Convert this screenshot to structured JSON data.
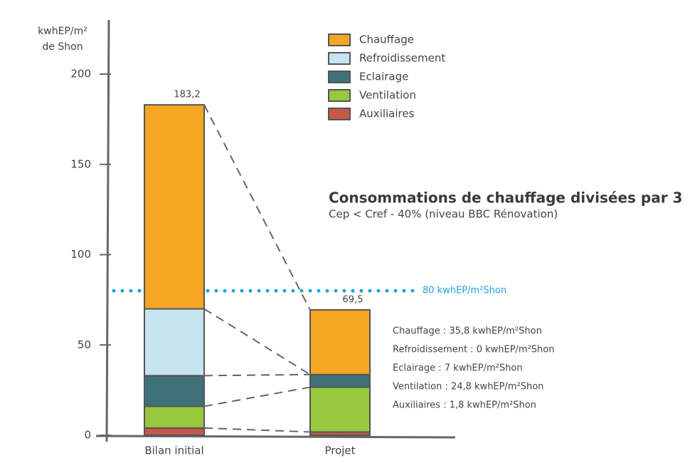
{
  "chart_data": {
    "type": "stacked-bar",
    "title": "Consommations de chauffage divisées par 3",
    "subtitle": "Cep < Cref - 40% (niveau BBC Rénovation)",
    "ylabel": [
      "kwhEP/m²",
      "de Shon"
    ],
    "categories": [
      "Bilan initial",
      "Projet"
    ],
    "series": [
      {
        "name": "Auxiliaires",
        "color": "#c9584a",
        "values": [
          4,
          1.8
        ]
      },
      {
        "name": "Ventilation",
        "color": "#96c93d",
        "values": [
          12,
          24.8
        ]
      },
      {
        "name": "Eclairage",
        "color": "#3f7179",
        "values": [
          17,
          7
        ]
      },
      {
        "name": "Refroidissement",
        "color": "#c5e4f0",
        "values": [
          37,
          0
        ]
      },
      {
        "name": "Chauffage",
        "color": "#f5a623",
        "values": [
          113,
          35.8
        ]
      }
    ],
    "total_labels": [
      "183,2",
      "69,5"
    ],
    "ylim": [
      0,
      230
    ],
    "yticks": [
      0,
      50,
      100,
      150,
      200
    ],
    "reference_line": {
      "value": 80,
      "label": "80 kwhEP/m²Shon",
      "color": "#1aa3dc"
    },
    "notes": [
      "Chauffage : 35,8 kwhEP/m²Shon",
      "Refroidissement : 0 kwhEP/m²Shon",
      "Eclairage : 7 kwhEP/m²Shon",
      "Ventilation : 24,8 kwhEP/m²Shon",
      "Auxiliaires : 1,8 kwhEP/m²Shon"
    ]
  }
}
